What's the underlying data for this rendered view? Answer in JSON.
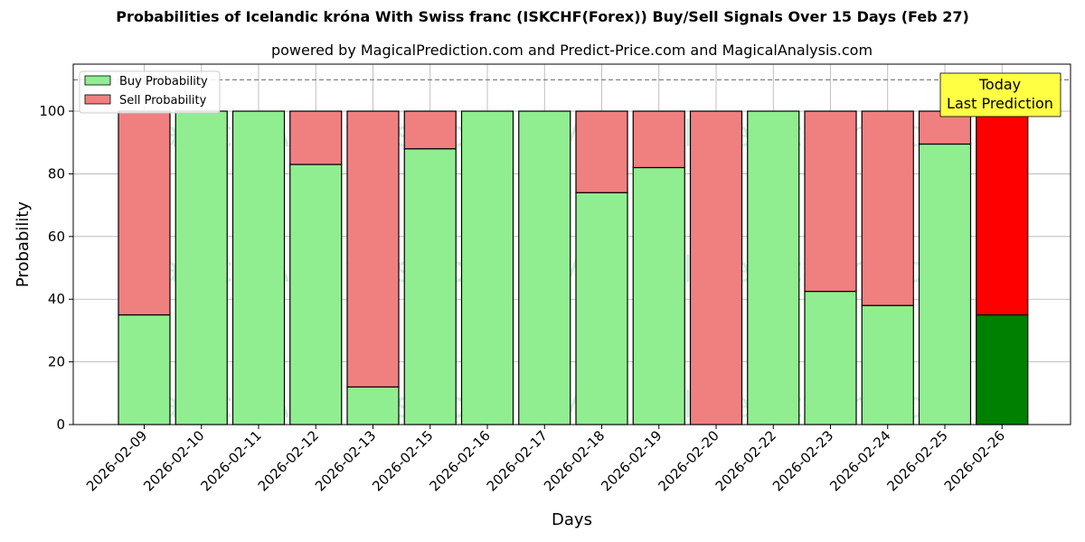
{
  "chart_data": {
    "type": "bar",
    "stacked": true,
    "title": "Probabilities of Icelandic króna With Swiss franc (ISKCHF(Forex)) Buy/Sell Signals Over 15 Days (Feb 27)",
    "subtitle": "powered by MagicalPrediction.com and Predict-Price.com and MagicalAnalysis.com",
    "xlabel": "Days",
    "ylabel": "Probability",
    "ylim": [
      0,
      115
    ],
    "yticks": [
      0,
      20,
      40,
      60,
      80,
      100
    ],
    "grid": true,
    "reference_line": 110,
    "legend_position": "top-left",
    "categories": [
      "2026-02-09",
      "2026-02-10",
      "2026-02-11",
      "2026-02-12",
      "2026-02-13",
      "2026-02-15",
      "2026-02-16",
      "2026-02-17",
      "2026-02-18",
      "2026-02-19",
      "2026-02-20",
      "2026-02-22",
      "2026-02-23",
      "2026-02-24",
      "2026-02-25",
      "2026-02-26"
    ],
    "series": [
      {
        "name": "Buy Probability",
        "color": "#90ee90",
        "values": [
          35,
          100,
          100,
          83,
          12,
          88,
          100,
          100,
          74,
          82,
          0,
          100,
          42.5,
          38,
          89.5,
          35
        ]
      },
      {
        "name": "Sell Probability",
        "color": "#f08080",
        "values": [
          65,
          0,
          0,
          17,
          88,
          12,
          0,
          0,
          26,
          18,
          100,
          0,
          57.5,
          62,
          10.5,
          65
        ]
      }
    ],
    "highlight": {
      "index": 15,
      "buy_color": "#008000",
      "sell_color": "#ff0000"
    },
    "annotation": {
      "line1": "Today",
      "line2": "Last Prediction",
      "color": "#ffff44"
    },
    "watermarks": [
      "MagicalAnalysis.com",
      "MagicalPrediction.com"
    ]
  }
}
